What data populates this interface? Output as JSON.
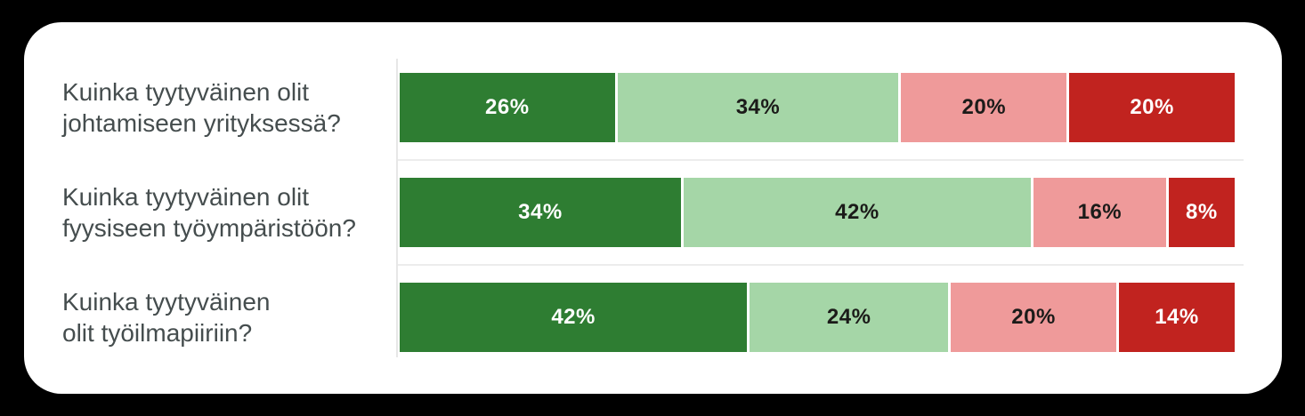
{
  "page": {
    "background_color": "#000000",
    "card_background_color": "#ffffff"
  },
  "chart_data": {
    "type": "bar",
    "orientation": "horizontal_stacked",
    "unit": "%",
    "xlim": [
      0,
      100
    ],
    "grid": "horizontal separator lines between category rows, vertical axis line at left of bars",
    "legend": "none",
    "label_text_color": "#454d4e",
    "axis_line_color": "#e7e7e7",
    "gridline_color": "#ececec",
    "categories": [
      "Kuinka tyytyväinen olit\njohtamiseen yrityksessä?",
      "Kuinka tyytyväinen olit\nfyysiseen työympäristöön?",
      "Kuinka tyytyväinen\nolit työilmapiiriin?"
    ],
    "series": [
      {
        "name": "dark-green",
        "color": "#2e7d32",
        "text_color": "#ffffff",
        "values": [
          26,
          34,
          42
        ]
      },
      {
        "name": "light-green",
        "color": "#a5d6a7",
        "text_color": "#1b1b19",
        "values": [
          34,
          42,
          24
        ]
      },
      {
        "name": "pink",
        "color": "#ef9a9a",
        "text_color": "#1b1b19",
        "values": [
          20,
          16,
          20
        ]
      },
      {
        "name": "red",
        "color": "#c1231f",
        "text_color": "#ffffff",
        "values": [
          20,
          8,
          14
        ]
      }
    ],
    "data_labels": [
      [
        "26%",
        "34%",
        "20%",
        "20%"
      ],
      [
        "34%",
        "42%",
        "16%",
        "8%"
      ],
      [
        "42%",
        "24%",
        "20%",
        "14%"
      ]
    ]
  }
}
